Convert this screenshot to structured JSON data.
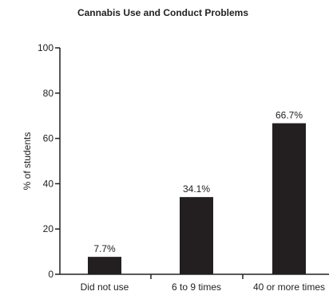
{
  "chart_data": {
    "type": "bar",
    "title": "Cannabis Use and Conduct Problems",
    "xlabel": "",
    "ylabel": "% of students",
    "categories": [
      "Did not use",
      "6 to 9 times",
      "40 or more times"
    ],
    "values": [
      7.7,
      34.1,
      66.7
    ],
    "data_labels": [
      "7.7%",
      "34.1%",
      "66.7%"
    ],
    "ylim": [
      0,
      100
    ],
    "yticks": [
      0,
      20,
      40,
      60,
      80,
      100
    ],
    "grid": false,
    "legend": "none",
    "bar_color": "#231f20"
  }
}
